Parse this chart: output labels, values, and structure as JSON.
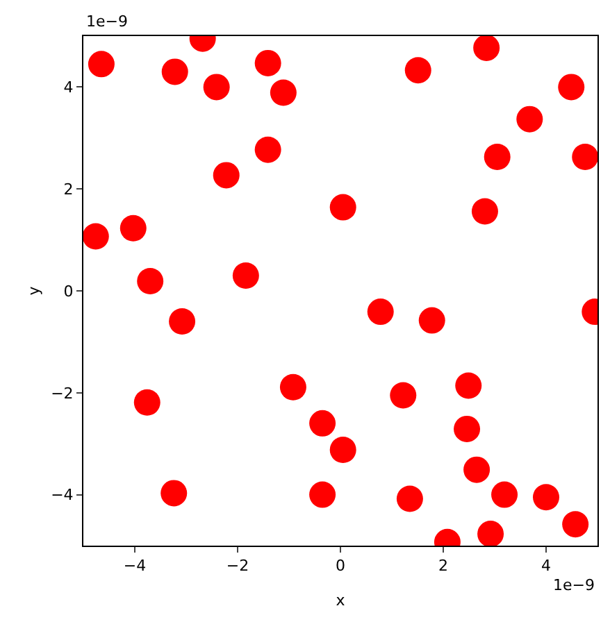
{
  "chart_data": {
    "type": "scatter",
    "xlabel": "x",
    "ylabel": "y",
    "annotations": [
      "1e−9",
      "1e−9"
    ],
    "x": [
      -4.65,
      -2.68,
      -3.22,
      -2.41,
      -1.41,
      -1.11,
      -1.41,
      -2.22,
      -4.76,
      -4.03,
      -3.7,
      -1.84,
      -3.08,
      -3.76,
      -3.24,
      -0.92,
      -0.35,
      0.05,
      -0.35,
      0.05,
      1.51,
      2.84,
      4.49,
      3.68,
      3.05,
      2.81,
      4.76,
      0.78,
      1.78,
      1.22,
      2.49,
      2.46,
      2.65,
      1.35,
      2.08,
      2.92,
      3.19,
      4.0,
      4.57,
      4.95
    ],
    "series": [
      {
        "color": "#ff0000",
        "values": [
          4.45,
          4.95,
          4.3,
          4.0,
          4.47,
          3.89,
          2.77,
          2.27,
          1.07,
          1.23,
          0.19,
          0.3,
          -0.6,
          -2.19,
          -3.97,
          -1.89,
          -2.6,
          -3.12,
          -4.0,
          1.64,
          4.33,
          4.77,
          4.0,
          3.37,
          2.63,
          1.56,
          2.63,
          -0.41,
          -0.58,
          -2.05,
          -1.86,
          -2.71,
          -3.51,
          -4.08,
          -4.93,
          -4.77,
          -4.0,
          -4.05,
          -4.58,
          -0.41
        ]
      }
    ],
    "xlim": [
      -5,
      5
    ],
    "ylim": [
      -5,
      5
    ],
    "xticks": [
      {
        "value": -4,
        "label": "−4"
      },
      {
        "value": -2,
        "label": "−2"
      },
      0,
      2,
      4
    ],
    "yticks": [
      {
        "value": -4,
        "label": "−4"
      },
      {
        "value": -2,
        "label": "−2"
      },
      0,
      2,
      4
    ],
    "grid": false,
    "marker": "circle"
  }
}
